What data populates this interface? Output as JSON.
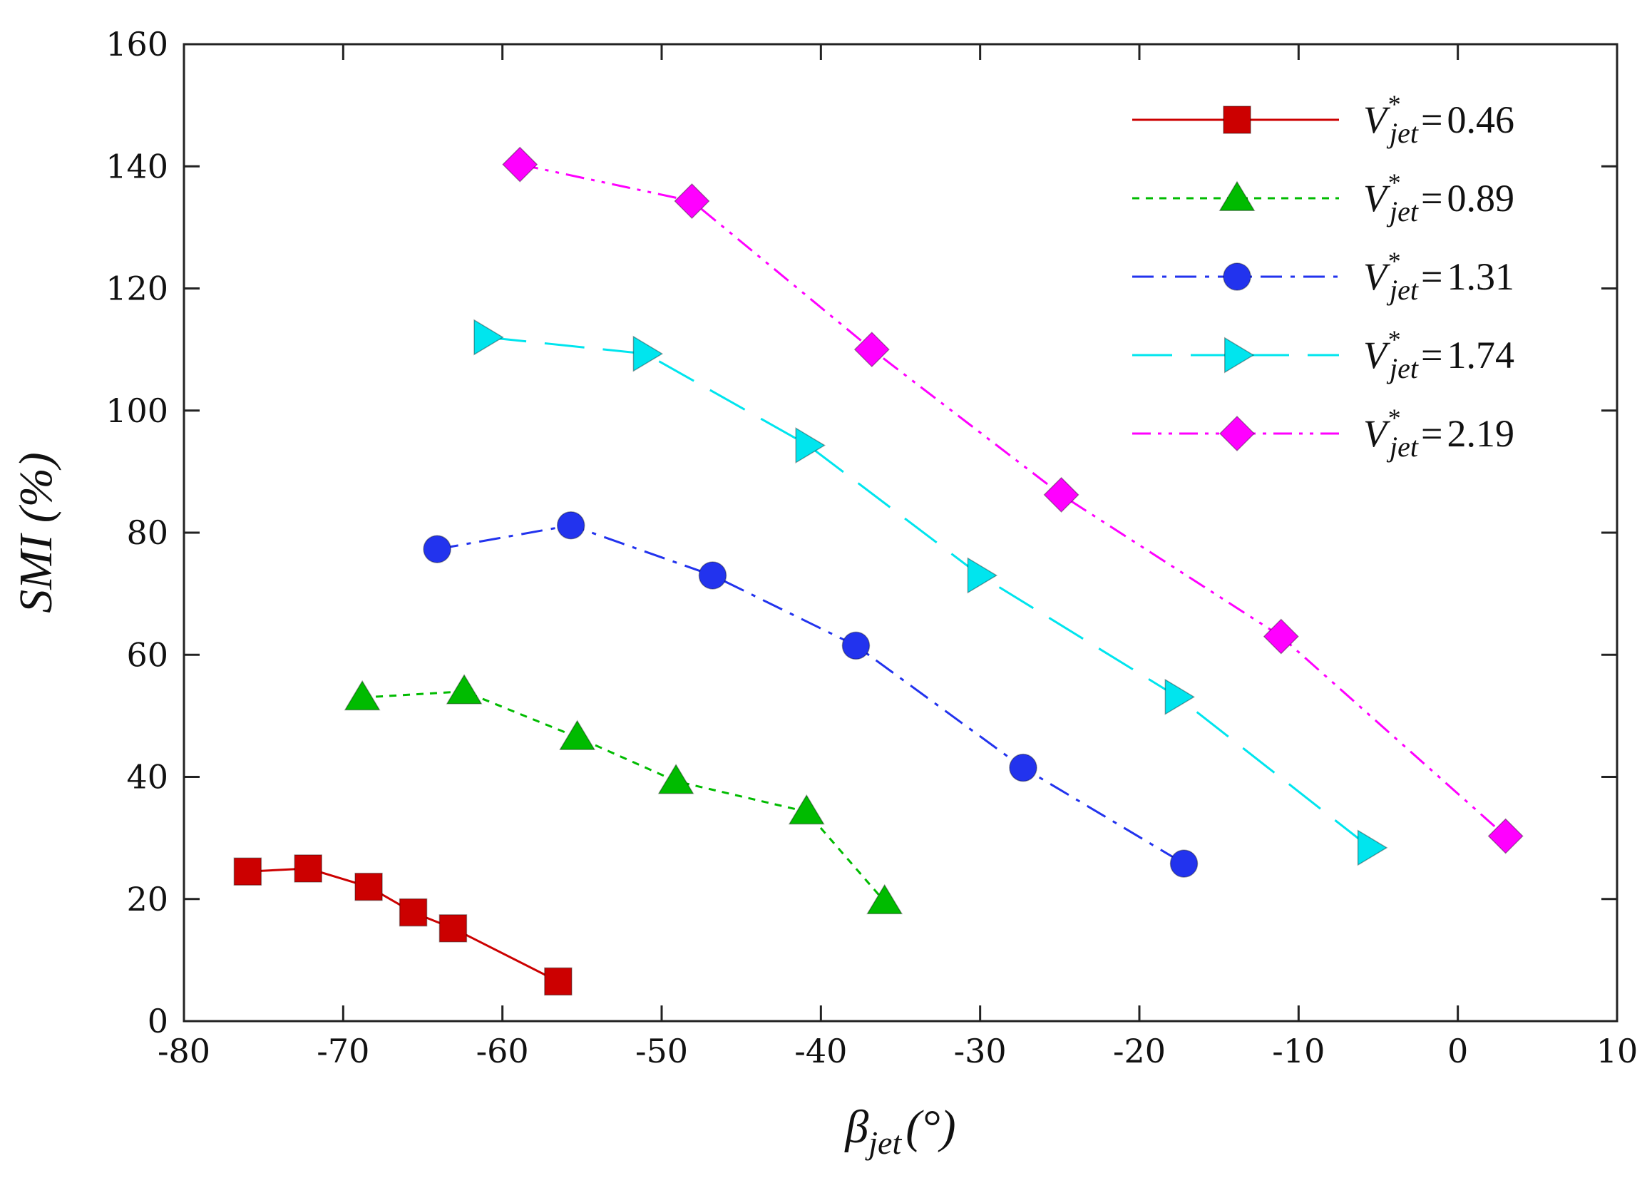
{
  "chart_data": {
    "type": "line",
    "title": "",
    "xlabel": {
      "base": "β",
      "sub": "jet",
      "unit": "(°)"
    },
    "ylabel": "SMI (%)",
    "xlim": [
      -80,
      10
    ],
    "ylim": [
      0,
      160
    ],
    "xticks": [
      "-80",
      "-70",
      "-60",
      "-50",
      "-40",
      "-30",
      "-20",
      "-10",
      "0",
      "10"
    ],
    "yticks": [
      "0",
      "20",
      "40",
      "60",
      "80",
      "100",
      "120",
      "140",
      "160"
    ],
    "grid": false,
    "legend_position": "top-right",
    "legend_var": {
      "base": "V",
      "sup": "*",
      "sub": "jet",
      "eq": "="
    },
    "series": [
      {
        "name": "V*jet = 0.46",
        "legend_value": "0.46",
        "color": "#cc0000",
        "marker": "square",
        "dash": "solid",
        "points": [
          [
            -76,
            24.5
          ],
          [
            -72.2,
            25
          ],
          [
            -68.4,
            22
          ],
          [
            -65.6,
            17.8
          ],
          [
            -63.1,
            15.2
          ],
          [
            -56.5,
            6.5
          ]
        ]
      },
      {
        "name": "V*jet = 0.89",
        "legend_value": "0.89",
        "color": "#00bb00",
        "marker": "triangle-up",
        "dash": "dotted",
        "points": [
          [
            -68.8,
            53
          ],
          [
            -62.4,
            54
          ],
          [
            -55.3,
            46.5
          ],
          [
            -49.1,
            39.3
          ],
          [
            -40.9,
            34.3
          ],
          [
            -36,
            19.6
          ]
        ]
      },
      {
        "name": "V*jet = 1.31",
        "legend_value": "1.31",
        "color": "#2233ee",
        "marker": "circle",
        "dash": "dashdot",
        "points": [
          [
            -64.1,
            77.3
          ],
          [
            -55.7,
            81.2
          ],
          [
            -46.8,
            73
          ],
          [
            -37.8,
            61.5
          ],
          [
            -27.3,
            41.5
          ],
          [
            -17.2,
            25.8
          ]
        ]
      },
      {
        "name": "V*jet = 1.74",
        "legend_value": "1.74",
        "color": "#00e5ee",
        "marker": "triangle-right",
        "dash": "longdash",
        "points": [
          [
            -61,
            112
          ],
          [
            -51,
            109.3
          ],
          [
            -40.8,
            94.3
          ],
          [
            -30,
            73
          ],
          [
            -17.6,
            53.1
          ],
          [
            -5.5,
            28.4
          ]
        ]
      },
      {
        "name": "V*jet = 2.19",
        "legend_value": "2.19",
        "color": "#ff00ff",
        "marker": "diamond",
        "dash": "dashdotdot",
        "points": [
          [
            -58.9,
            140.3
          ],
          [
            -48.1,
            134.3
          ],
          [
            -36.8,
            110
          ],
          [
            -24.9,
            86.2
          ],
          [
            -11.1,
            63
          ],
          [
            3,
            30.3
          ]
        ]
      }
    ]
  }
}
